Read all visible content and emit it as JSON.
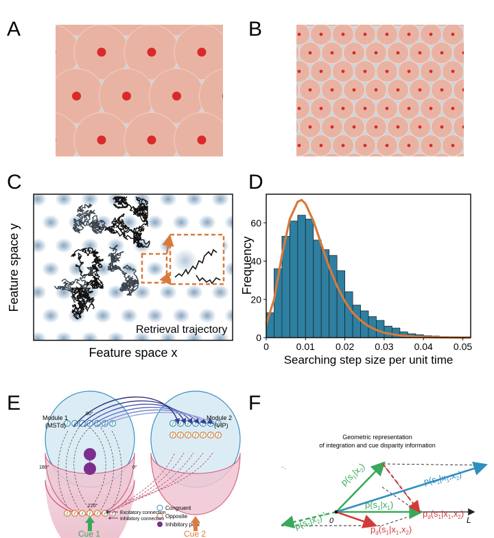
{
  "panels": {
    "A": {
      "label": "A"
    },
    "B": {
      "label": "B"
    },
    "C": {
      "label": "C",
      "xlabel": "Feature space x",
      "ylabel": "Feature space y",
      "caption": "Retrieval trajectory"
    },
    "D": {
      "label": "D"
    },
    "E": {
      "label": "E",
      "module1_title": "Module 1",
      "module1_sub": "(MSTd)",
      "module2_title": "Module 2",
      "module2_sub": "(VIP)",
      "angle_90": "90°",
      "angle_180": "180°",
      "angle_0": "0°",
      "angle_270": "270°",
      "legend_congruent": "Congruent",
      "legend_opposite": "Opposite",
      "legend_inhibitory_pool": "Inhibitory pool",
      "legend_excitatory": "Excitatory connection",
      "legend_inhibitory_conn": "Inhibitory connection",
      "cue1": "Cue 1",
      "cue2": "Cue 2"
    },
    "F": {
      "label": "F",
      "title_line1": "Geometric representation",
      "title_line2": "of integration and cue disparity information",
      "lbl_origin": "0",
      "lbl_L": "L",
      "lbl_p_s1_x2": "p(s",
      "lbl_p_s1_x1": "p(s",
      "lbl_p_s1_x1x2": "p(s",
      "lbl_pd_s1_x1x2_top": "p",
      "lbl_pd_s1_x1x2_bot": "p",
      "lbl_p_s1_x2_inv": "p(s"
    }
  },
  "chart_data": {
    "type": "bar",
    "xlabel": "Searching step size per unit time",
    "ylabel": "Frequency",
    "xlim": [
      0,
      0.052
    ],
    "ylim": [
      0,
      75
    ],
    "xticks": [
      "0",
      "0.01",
      "0.02",
      "0.03",
      "0.04",
      "0.05"
    ],
    "yticks": [
      "0",
      "20",
      "40",
      "60"
    ],
    "bin_width": 0.002,
    "bin_starts": [
      0,
      0.002,
      0.004,
      0.006,
      0.008,
      0.01,
      0.012,
      0.014,
      0.016,
      0.018,
      0.02,
      0.022,
      0.024,
      0.026,
      0.028,
      0.03,
      0.032,
      0.034,
      0.036,
      0.038,
      0.04,
      0.042,
      0.044,
      0.046,
      0.048,
      0.05
    ],
    "values": [
      13,
      36,
      53,
      61,
      64,
      62,
      51,
      46,
      43,
      35,
      24,
      17,
      14,
      11,
      9,
      6,
      5,
      3,
      2,
      1.5,
      1,
      0.8,
      0.5,
      0.3,
      0.2,
      0.1
    ],
    "fit_curve": {
      "x": [
        0,
        0.002,
        0.004,
        0.006,
        0.008,
        0.009,
        0.01,
        0.012,
        0.014,
        0.016,
        0.018,
        0.02,
        0.022,
        0.024,
        0.026,
        0.028,
        0.03,
        0.034,
        0.038,
        0.042,
        0.046,
        0.05,
        0.052
      ],
      "y": [
        7,
        20,
        43,
        62,
        71,
        72,
        70,
        61,
        49,
        37,
        27,
        19,
        13,
        9,
        6,
        4,
        2.5,
        1.1,
        0.5,
        0.2,
        0.1,
        0.05,
        0.03
      ]
    },
    "colors": {
      "bar": "#2e7fa0",
      "bar_edge": "#1b2a33",
      "fit": "#d9793a"
    }
  },
  "colors": {
    "field_fill": "#e9b3a3",
    "field_center": "#d92a2a",
    "background": "#c7d6de"
  }
}
